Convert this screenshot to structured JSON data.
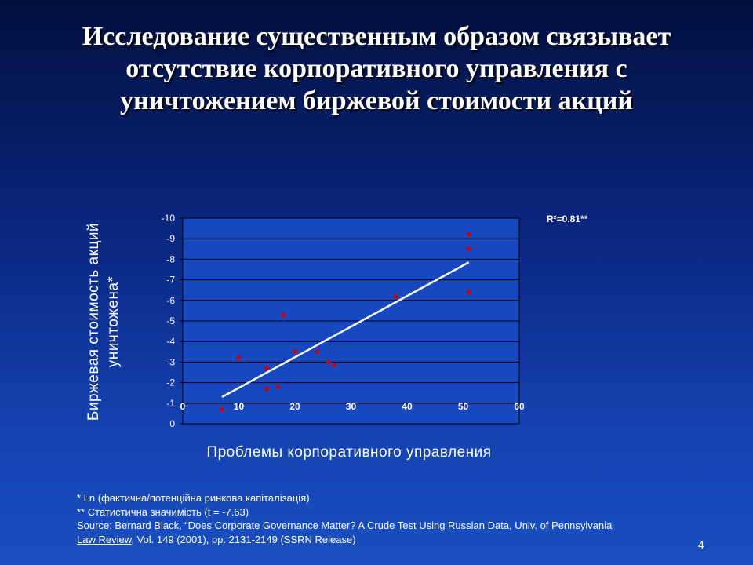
{
  "slide": {
    "title_lines": [
      "Исследование существенным образом связывает",
      "отсутствие корпоративного управления с",
      "уничтожением биржевой стоимости акций"
    ],
    "footnotes": {
      "line1": "* Ln (фактична/потенційна ринкова капіталізація)",
      "line2": "** Статистична значимість (t = -7.63)",
      "line3": "Source: Bernard Black, “Does Corporate Governance Matter?  A Crude Test Using Russian Data, Univ. of Pennsylvania",
      "line4_link": "Law Review",
      "line4_rest": ", Vol. 149 (2001), pp. 2131-2149 (SSRN Release)"
    },
    "page_number": "4"
  },
  "chart_data": {
    "type": "scatter",
    "title": "",
    "xlabel": "Проблемы корпоративного управления",
    "ylabel_lines": [
      "Биржевая стоимость акций",
      "уничтожена*"
    ],
    "xlim": [
      0,
      60
    ],
    "ylim": [
      0,
      -10
    ],
    "y_axis_reversed": true,
    "x_ticks": [
      0,
      10,
      20,
      30,
      40,
      50,
      60
    ],
    "y_ticks": [
      0,
      -1,
      -2,
      -3,
      -4,
      -5,
      -6,
      -7,
      -8,
      -9,
      -10
    ],
    "x_tick_labels": [
      "0",
      "10",
      "20",
      "30",
      "40",
      "50",
      "60"
    ],
    "y_tick_labels": [
      "0",
      "-1",
      "-2",
      "-3",
      "-4",
      "-5",
      "-6",
      "-7",
      "-8",
      "-9",
      "-10"
    ],
    "x_axis_position": "at y = -1",
    "grid": "horizontal",
    "annotation": "R²=0.81**",
    "marker_color": "#cc0000",
    "trendline_color": "#ffffff",
    "points": [
      {
        "x": 7,
        "y": -0.7
      },
      {
        "x": 10,
        "y": -3.2
      },
      {
        "x": 15,
        "y": -2.7
      },
      {
        "x": 15,
        "y": -1.7
      },
      {
        "x": 17,
        "y": -1.8
      },
      {
        "x": 18,
        "y": -5.3
      },
      {
        "x": 20,
        "y": -3.5
      },
      {
        "x": 24,
        "y": -3.5
      },
      {
        "x": 26,
        "y": -3.0
      },
      {
        "x": 27,
        "y": -2.85
      },
      {
        "x": 38,
        "y": -6.2
      },
      {
        "x": 51,
        "y": -9.2
      },
      {
        "x": 51,
        "y": -8.5
      },
      {
        "x": 51,
        "y": -6.4
      }
    ],
    "trendline": [
      {
        "x": 7,
        "y": -1.3
      },
      {
        "x": 51,
        "y": -7.85
      }
    ]
  }
}
